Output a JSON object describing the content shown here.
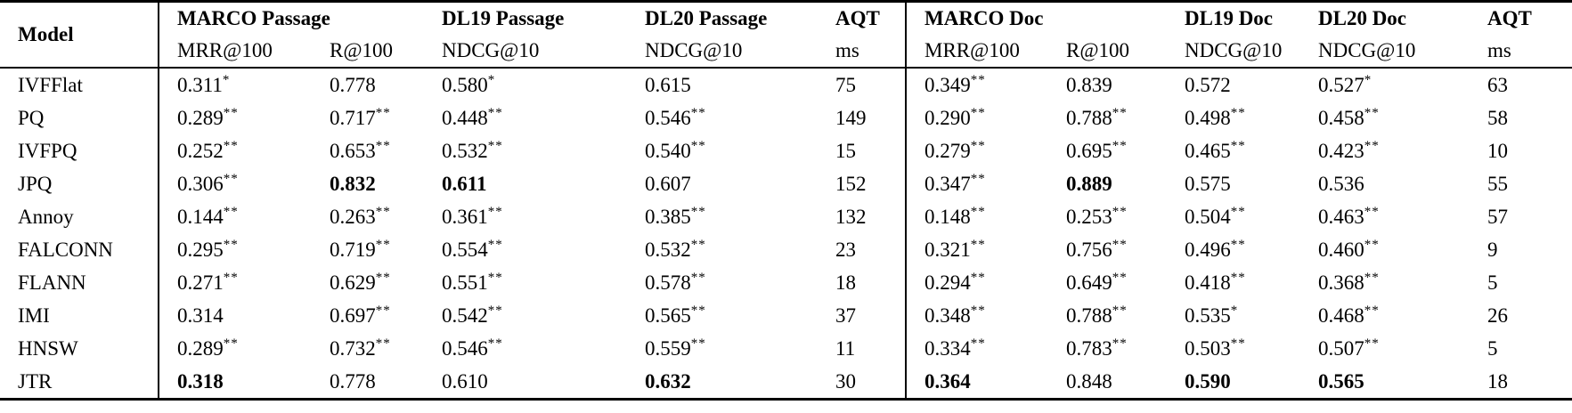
{
  "table": {
    "header": {
      "model_label": "Model",
      "groups": [
        {
          "label": "MARCO Passage",
          "sub": [
            "MRR@100",
            "R@100"
          ]
        },
        {
          "label": "DL19 Passage",
          "sub": [
            "NDCG@10"
          ]
        },
        {
          "label": "DL20 Passage",
          "sub": [
            "NDCG@10"
          ]
        },
        {
          "label": "AQT",
          "sub": [
            "ms"
          ]
        },
        {
          "label": "MARCO Doc",
          "sub": [
            "MRR@100",
            "R@100"
          ]
        },
        {
          "label": "DL19 Doc",
          "sub": [
            "NDCG@10"
          ]
        },
        {
          "label": "DL20 Doc",
          "sub": [
            "NDCG@10"
          ]
        },
        {
          "label": "AQT",
          "sub": [
            "ms"
          ]
        }
      ]
    },
    "rows": [
      {
        "model": "IVFFlat",
        "cells": [
          {
            "v": "0.311",
            "s": "*"
          },
          {
            "v": "0.778"
          },
          {
            "v": "0.580",
            "s": "*"
          },
          {
            "v": "0.615"
          },
          {
            "v": "75"
          },
          {
            "v": "0.349",
            "s": "**"
          },
          {
            "v": "0.839"
          },
          {
            "v": "0.572"
          },
          {
            "v": "0.527",
            "s": "*"
          },
          {
            "v": "63"
          }
        ]
      },
      {
        "model": "PQ",
        "cells": [
          {
            "v": "0.289",
            "s": "**"
          },
          {
            "v": "0.717",
            "s": "**"
          },
          {
            "v": "0.448",
            "s": "**"
          },
          {
            "v": "0.546",
            "s": "**"
          },
          {
            "v": "149"
          },
          {
            "v": "0.290",
            "s": "**"
          },
          {
            "v": "0.788",
            "s": "**"
          },
          {
            "v": "0.498",
            "s": "**"
          },
          {
            "v": "0.458",
            "s": "**"
          },
          {
            "v": "58"
          }
        ]
      },
      {
        "model": "IVFPQ",
        "cells": [
          {
            "v": "0.252",
            "s": "**"
          },
          {
            "v": "0.653",
            "s": "**"
          },
          {
            "v": "0.532",
            "s": "**"
          },
          {
            "v": "0.540",
            "s": "**"
          },
          {
            "v": "15"
          },
          {
            "v": "0.279",
            "s": "**"
          },
          {
            "v": "0.695",
            "s": "**"
          },
          {
            "v": "0.465",
            "s": "**"
          },
          {
            "v": "0.423",
            "s": "**"
          },
          {
            "v": "10"
          }
        ]
      },
      {
        "model": "JPQ",
        "cells": [
          {
            "v": "0.306",
            "s": "**"
          },
          {
            "v": "0.832",
            "b": true
          },
          {
            "v": "0.611",
            "b": true
          },
          {
            "v": "0.607"
          },
          {
            "v": "152"
          },
          {
            "v": "0.347",
            "s": "**"
          },
          {
            "v": "0.889",
            "b": true
          },
          {
            "v": "0.575"
          },
          {
            "v": "0.536"
          },
          {
            "v": "55"
          }
        ]
      },
      {
        "model": "Annoy",
        "cells": [
          {
            "v": "0.144",
            "s": "**"
          },
          {
            "v": "0.263",
            "s": "**"
          },
          {
            "v": "0.361",
            "s": "**"
          },
          {
            "v": "0.385",
            "s": "**"
          },
          {
            "v": "132"
          },
          {
            "v": "0.148",
            "s": "**"
          },
          {
            "v": "0.253",
            "s": "**"
          },
          {
            "v": "0.504",
            "s": "**"
          },
          {
            "v": "0.463",
            "s": "**"
          },
          {
            "v": "57"
          }
        ]
      },
      {
        "model": "FALCONN",
        "cells": [
          {
            "v": "0.295",
            "s": "**"
          },
          {
            "v": "0.719",
            "s": "**"
          },
          {
            "v": "0.554",
            "s": "**"
          },
          {
            "v": "0.532",
            "s": "**"
          },
          {
            "v": "23"
          },
          {
            "v": "0.321",
            "s": "**"
          },
          {
            "v": "0.756",
            "s": "**"
          },
          {
            "v": "0.496",
            "s": "**"
          },
          {
            "v": "0.460",
            "s": "**"
          },
          {
            "v": "9"
          }
        ]
      },
      {
        "model": "FLANN",
        "cells": [
          {
            "v": "0.271",
            "s": "**"
          },
          {
            "v": "0.629",
            "s": "**"
          },
          {
            "v": "0.551",
            "s": "**"
          },
          {
            "v": "0.578",
            "s": "**"
          },
          {
            "v": "18"
          },
          {
            "v": "0.294",
            "s": "**"
          },
          {
            "v": "0.649",
            "s": "**"
          },
          {
            "v": "0.418",
            "s": "**"
          },
          {
            "v": "0.368",
            "s": "**"
          },
          {
            "v": "5"
          }
        ]
      },
      {
        "model": "IMI",
        "cells": [
          {
            "v": "0.314"
          },
          {
            "v": "0.697",
            "s": "**"
          },
          {
            "v": "0.542",
            "s": "**"
          },
          {
            "v": "0.565",
            "s": "**"
          },
          {
            "v": "37"
          },
          {
            "v": "0.348",
            "s": "**"
          },
          {
            "v": "0.788",
            "s": "**"
          },
          {
            "v": "0.535",
            "s": "*"
          },
          {
            "v": "0.468",
            "s": "**"
          },
          {
            "v": "26"
          }
        ]
      },
      {
        "model": "HNSW",
        "cells": [
          {
            "v": "0.289",
            "s": "**"
          },
          {
            "v": "0.732",
            "s": "**"
          },
          {
            "v": "0.546",
            "s": "**"
          },
          {
            "v": "0.559",
            "s": "**"
          },
          {
            "v": "11"
          },
          {
            "v": "0.334",
            "s": "**"
          },
          {
            "v": "0.783",
            "s": "**"
          },
          {
            "v": "0.503",
            "s": "**"
          },
          {
            "v": "0.507",
            "s": "**"
          },
          {
            "v": "5"
          }
        ]
      },
      {
        "model": "JTR",
        "cells": [
          {
            "v": "0.318",
            "b": true
          },
          {
            "v": "0.778"
          },
          {
            "v": "0.610"
          },
          {
            "v": "0.632",
            "b": true
          },
          {
            "v": "30"
          },
          {
            "v": "0.364",
            "b": true
          },
          {
            "v": "0.848"
          },
          {
            "v": "0.590",
            "b": true
          },
          {
            "v": "0.565",
            "b": true
          },
          {
            "v": "18"
          }
        ]
      }
    ]
  }
}
